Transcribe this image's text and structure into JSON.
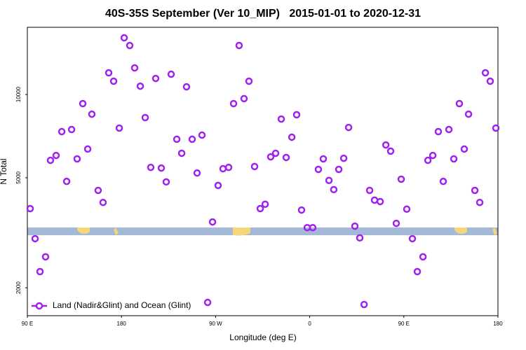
{
  "chart_data": {
    "type": "scatter",
    "title": "40S-35S September (Ver 10_MIP)   2015-01-01 to 2020-12-31",
    "xlabel": "Longitude (deg E)",
    "ylabel": "N Total",
    "xlim": [
      90,
      540
    ],
    "xticks": [
      {
        "value": 90,
        "label": "90 E"
      },
      180,
      {
        "value": 270,
        "label": "90 W"
      },
      {
        "value": 360,
        "label": "0"
      },
      {
        "value": 450,
        "label": "90 E"
      },
      {
        "value": 540,
        "label": "180"
      }
    ],
    "ylim": [
      1585,
      17500
    ],
    "yticks": [
      2000,
      5000,
      10000
    ],
    "log_scale": "y",
    "legend": "bottom left",
    "x": [
      92.7,
      97.4,
      102.1,
      107.4,
      112.1,
      117.5,
      122.9,
      127.6,
      132.3,
      137.6,
      143,
      147.7,
      151.7,
      157.7,
      162.4,
      167.8,
      172.5,
      177.9,
      182.6,
      187.9,
      192.6,
      198,
      202.7,
      208,
      212.7,
      218.1,
      222.8,
      227.5,
      232.9,
      237.6,
      242.2,
      247.6,
      252.3,
      257,
      262.4,
      267.1,
      272.4,
      277.1,
      282.5,
      287.2,
      292.5,
      297.2,
      301.9,
      307.3,
      312.7,
      317.4,
      322.7,
      327.4,
      332.8,
      337.5,
      342.9,
      347.5,
      352.2,
      357.6,
      362.9,
      368.3,
      373,
      378.4,
      383,
      387.8,
      392.5,
      397.2,
      403.2,
      407.9,
      412,
      417.3,
      422,
      427.4,
      432.8,
      437.4,
      442.8,
      447.5,
      452.8,
      458.2,
      462.9,
      468.3,
      473,
      477.7,
      483,
      487.7,
      493.1,
      497.8,
      503.1,
      507.8,
      511.9,
      517.9,
      522.6,
      528,
      532.6,
      538
    ],
    "series": [
      {
        "name": "Land (Nadir&Glint) and Ocean (Glint)",
        "color": "#a020f0",
        "values": [
          3867,
          3010,
          2288,
          2588,
          5780,
          6020,
          7340,
          4850,
          7470,
          5850,
          9270,
          6350,
          8490,
          4500,
          4070,
          11980,
          11170,
          7560,
          16030,
          15040,
          12480,
          10720,
          8250,
          5450,
          11430,
          5420,
          4830,
          11840,
          6890,
          6130,
          10660,
          6890,
          5200,
          7130,
          1770,
          3460,
          4690,
          5390,
          5450,
          9270,
          15040,
          9660,
          11170,
          5490,
          3867,
          4010,
          5950,
          6130,
          8150,
          5920,
          7010,
          8450,
          3820,
          3300,
          3300,
          5360,
          5850,
          4890,
          4530,
          5360,
          5880,
          7600,
          3340,
          3030,
          1740,
          4500,
          4150,
          4100,
          6570,
          6240,
          3420,
          4940,
          3850,
          3010,
          2288,
          2588,
          5780,
          6020,
          7340,
          4850,
          7470,
          5850,
          9270,
          6350,
          8490,
          4500,
          4070,
          11980,
          11170,
          7560
        ]
      }
    ]
  }
}
